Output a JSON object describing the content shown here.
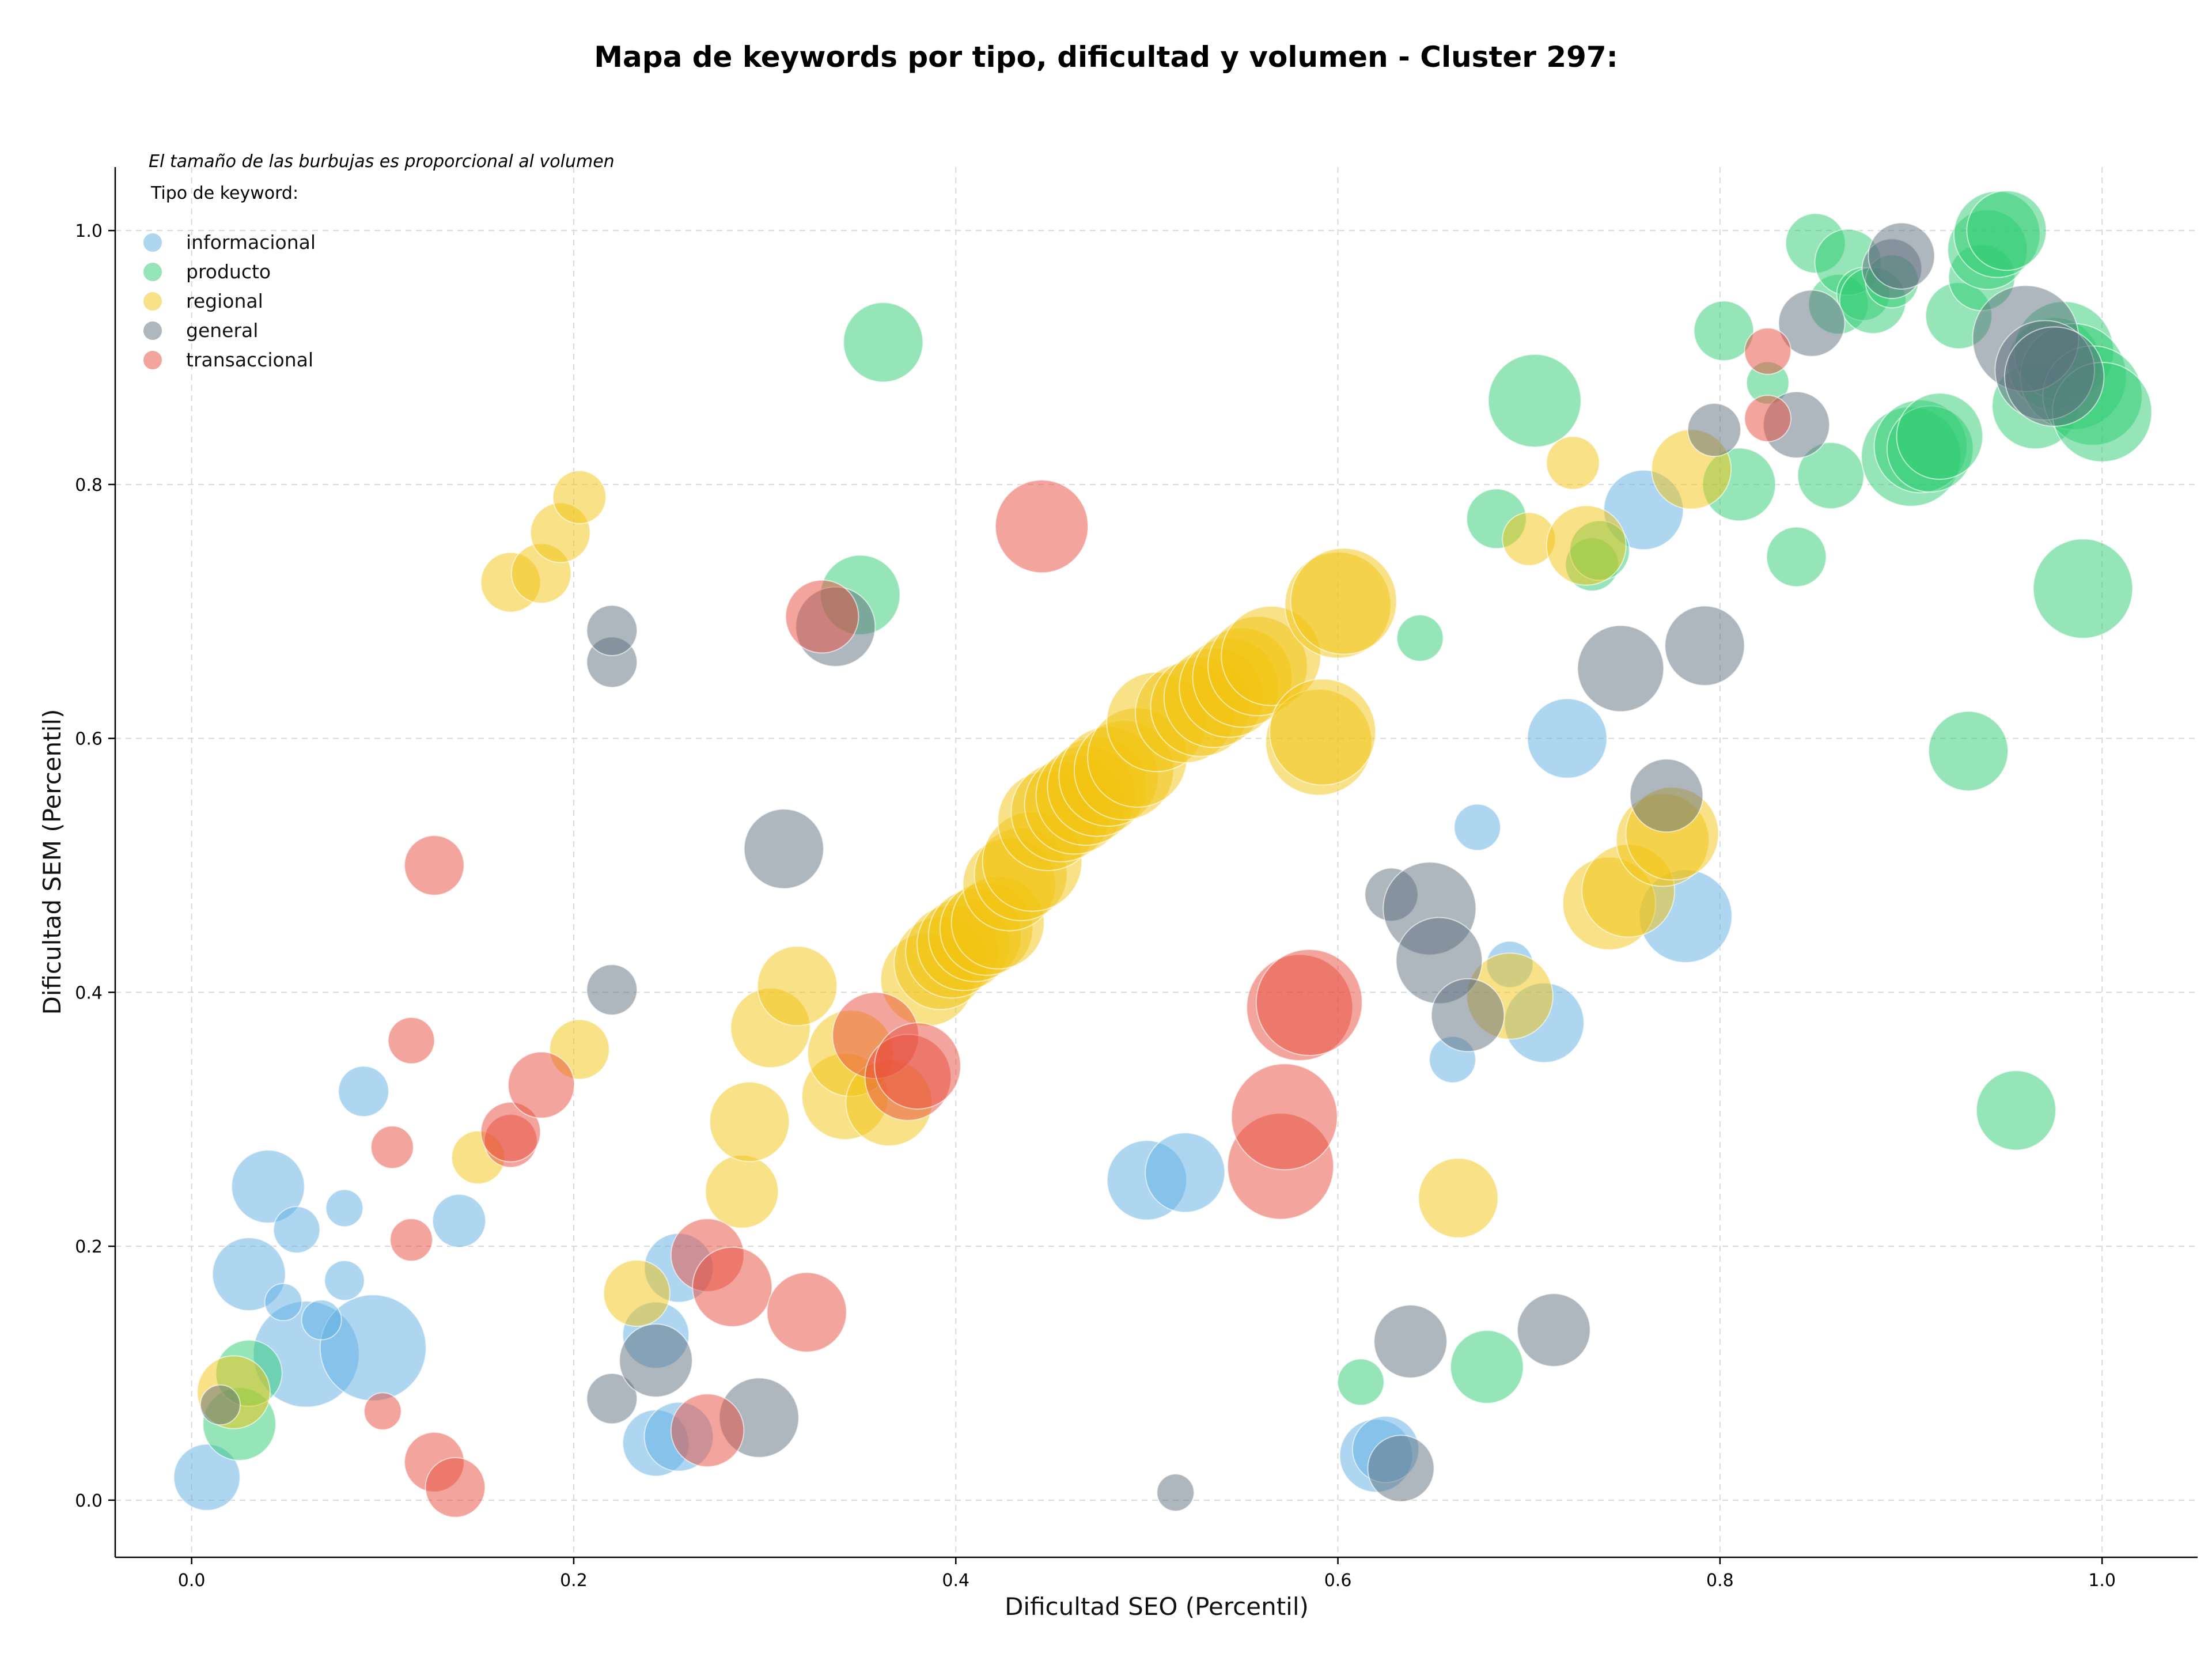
{
  "chart_data": {
    "type": "scatter",
    "title": "Mapa de keywords por tipo, dificultad y volumen - Cluster 297:",
    "xlabel": "Dificultad SEO (Percentil)",
    "ylabel": "Dificultad SEM (Percentil)",
    "xlim": [
      -0.04,
      1.05
    ],
    "ylim": [
      -0.045,
      1.05
    ],
    "xticks": [
      "0.0",
      "0.2",
      "0.4",
      "0.6",
      "0.8",
      "1.0"
    ],
    "yticks": [
      "0.0",
      "0.2",
      "0.4",
      "0.6",
      "0.8",
      "1.0"
    ],
    "grid": true,
    "note": "El tamaño de las burbujas es proporcional al volumen",
    "legend_title": "Tipo de keyword:",
    "legend_position": "top-left",
    "series": [
      {
        "name": "informacional",
        "color": "#5DADE2",
        "points": [
          [
            0.008,
            0.018,
            5
          ],
          [
            0.03,
            0.178,
            5.5
          ],
          [
            0.04,
            0.247,
            5.5
          ],
          [
            0.055,
            0.213,
            3.5
          ],
          [
            0.06,
            0.115,
            8
          ],
          [
            0.095,
            0.12,
            8
          ],
          [
            0.09,
            0.322,
            3.8
          ],
          [
            0.08,
            0.173,
            3
          ],
          [
            0.08,
            0.23,
            2.8
          ],
          [
            0.068,
            0.142,
            3
          ],
          [
            0.048,
            0.156,
            2.8
          ],
          [
            0.14,
            0.22,
            4
          ],
          [
            0.243,
            0.13,
            5
          ],
          [
            0.243,
            0.045,
            5
          ],
          [
            0.255,
            0.05,
            5.2
          ],
          [
            0.255,
            0.183,
            5.2
          ],
          [
            0.5,
            0.252,
            6
          ],
          [
            0.52,
            0.258,
            6
          ],
          [
            0.62,
            0.035,
            5.5
          ],
          [
            0.625,
            0.04,
            5
          ],
          [
            0.66,
            0.347,
            3.5
          ],
          [
            0.673,
            0.53,
            3.5
          ],
          [
            0.69,
            0.422,
            3.5
          ],
          [
            0.708,
            0.376,
            6
          ],
          [
            0.72,
            0.6,
            6
          ],
          [
            0.76,
            0.78,
            6
          ],
          [
            0.782,
            0.46,
            7
          ]
        ]
      },
      {
        "name": "producto",
        "color": "#2ECC71",
        "points": [
          [
            0.025,
            0.06,
            5.5
          ],
          [
            0.03,
            0.1,
            5
          ],
          [
            0.362,
            0.912,
            6
          ],
          [
            0.35,
            0.713,
            6
          ],
          [
            0.612,
            0.093,
            3.5
          ],
          [
            0.643,
            0.679,
            3.5
          ],
          [
            0.678,
            0.105,
            5.5
          ],
          [
            0.683,
            0.773,
            4.5
          ],
          [
            0.703,
            0.866,
            7
          ],
          [
            0.733,
            0.737,
            4
          ],
          [
            0.737,
            0.748,
            4.5
          ],
          [
            0.802,
            0.921,
            4.5
          ],
          [
            0.81,
            0.8,
            5.5
          ],
          [
            0.825,
            0.88,
            3.2
          ],
          [
            0.84,
            0.743,
            4.5
          ],
          [
            0.85,
            0.99,
            4.5
          ],
          [
            0.858,
            0.807,
            5
          ],
          [
            0.862,
            0.942,
            4.5
          ],
          [
            0.867,
            0.975,
            5
          ],
          [
            0.875,
            0.95,
            4
          ],
          [
            0.88,
            0.945,
            5
          ],
          [
            0.89,
            0.96,
            4
          ],
          [
            0.9,
            0.822,
            7.5
          ],
          [
            0.905,
            0.83,
            7
          ],
          [
            0.91,
            0.828,
            6.5
          ],
          [
            0.915,
            0.838,
            6.5
          ],
          [
            0.925,
            0.933,
            5
          ],
          [
            0.93,
            0.59,
            6
          ],
          [
            0.937,
            0.963,
            5
          ],
          [
            0.94,
            0.985,
            6
          ],
          [
            0.945,
            0.997,
            6.5
          ],
          [
            0.95,
            1.0,
            6
          ],
          [
            0.955,
            0.307,
            6
          ],
          [
            0.965,
            0.862,
            6.5
          ],
          [
            0.975,
            0.895,
            7
          ],
          [
            0.98,
            0.905,
            7.5
          ],
          [
            0.985,
            0.885,
            8
          ],
          [
            0.99,
            0.718,
            7.5
          ],
          [
            0.995,
            0.87,
            7.5
          ],
          [
            1.0,
            0.857,
            7.5
          ]
        ]
      },
      {
        "name": "regional",
        "color": "#F1C40F",
        "points": [
          [
            0.022,
            0.085,
            5.5
          ],
          [
            0.15,
            0.27,
            4
          ],
          [
            0.167,
            0.723,
            4.5
          ],
          [
            0.183,
            0.73,
            4.5
          ],
          [
            0.193,
            0.762,
            4.5
          ],
          [
            0.203,
            0.79,
            4
          ],
          [
            0.203,
            0.355,
            4.5
          ],
          [
            0.233,
            0.163,
            5
          ],
          [
            0.288,
            0.243,
            5.5
          ],
          [
            0.292,
            0.298,
            6
          ],
          [
            0.303,
            0.372,
            6
          ],
          [
            0.317,
            0.405,
            6
          ],
          [
            0.342,
            0.318,
            6.5
          ],
          [
            0.345,
            0.352,
            6.5
          ],
          [
            0.365,
            0.313,
            6.5
          ],
          [
            0.385,
            0.41,
            7
          ],
          [
            0.392,
            0.423,
            7
          ],
          [
            0.398,
            0.432,
            7
          ],
          [
            0.404,
            0.438,
            7
          ],
          [
            0.41,
            0.445,
            7
          ],
          [
            0.416,
            0.45,
            7
          ],
          [
            0.422,
            0.455,
            7
          ],
          [
            0.428,
            0.485,
            7
          ],
          [
            0.434,
            0.493,
            7
          ],
          [
            0.44,
            0.503,
            7.5
          ],
          [
            0.448,
            0.535,
            7.5
          ],
          [
            0.455,
            0.542,
            7.5
          ],
          [
            0.462,
            0.548,
            7.5
          ],
          [
            0.468,
            0.555,
            7.5
          ],
          [
            0.474,
            0.562,
            7.5
          ],
          [
            0.48,
            0.57,
            7.5
          ],
          [
            0.488,
            0.575,
            7.5
          ],
          [
            0.495,
            0.585,
            7.5
          ],
          [
            0.505,
            0.613,
            7.5
          ],
          [
            0.52,
            0.62,
            7.5
          ],
          [
            0.528,
            0.625,
            7.5
          ],
          [
            0.535,
            0.632,
            7.5
          ],
          [
            0.543,
            0.64,
            7.5
          ],
          [
            0.55,
            0.648,
            7.5
          ],
          [
            0.558,
            0.657,
            7.5
          ],
          [
            0.565,
            0.665,
            7.5
          ],
          [
            0.59,
            0.597,
            8
          ],
          [
            0.592,
            0.605,
            8
          ],
          [
            0.6,
            0.705,
            8
          ],
          [
            0.603,
            0.708,
            8
          ],
          [
            0.663,
            0.238,
            6
          ],
          [
            0.69,
            0.397,
            6.5
          ],
          [
            0.7,
            0.757,
            4
          ],
          [
            0.723,
            0.817,
            4
          ],
          [
            0.73,
            0.752,
            6
          ],
          [
            0.742,
            0.47,
            7
          ],
          [
            0.752,
            0.48,
            7
          ],
          [
            0.77,
            0.52,
            7
          ],
          [
            0.775,
            0.525,
            7
          ],
          [
            0.785,
            0.812,
            6
          ]
        ]
      },
      {
        "name": "general",
        "color": "#5D6D7E",
        "points": [
          [
            0.015,
            0.075,
            3
          ],
          [
            0.22,
            0.08,
            3.8
          ],
          [
            0.22,
            0.402,
            3.8
          ],
          [
            0.22,
            0.66,
            3.8
          ],
          [
            0.22,
            0.685,
            3.8
          ],
          [
            0.243,
            0.11,
            5.5
          ],
          [
            0.297,
            0.065,
            6
          ],
          [
            0.31,
            0.513,
            6
          ],
          [
            0.337,
            0.688,
            6
          ],
          [
            0.515,
            0.006,
            2.8
          ],
          [
            0.628,
            0.477,
            4
          ],
          [
            0.633,
            0.025,
            5
          ],
          [
            0.638,
            0.125,
            5.5
          ],
          [
            0.648,
            0.466,
            7
          ],
          [
            0.653,
            0.425,
            6.5
          ],
          [
            0.668,
            0.382,
            5.5
          ],
          [
            0.713,
            0.134,
            5.5
          ],
          [
            0.748,
            0.655,
            6.5
          ],
          [
            0.772,
            0.555,
            5.5
          ],
          [
            0.792,
            0.673,
            6
          ],
          [
            0.797,
            0.843,
            4
          ],
          [
            0.84,
            0.847,
            5
          ],
          [
            0.848,
            0.927,
            5
          ],
          [
            0.89,
            0.97,
            4.5
          ],
          [
            0.895,
            0.98,
            5
          ],
          [
            0.96,
            0.915,
            8
          ],
          [
            0.97,
            0.89,
            7.5
          ],
          [
            0.975,
            0.885,
            7.5
          ]
        ]
      },
      {
        "name": "transaccional",
        "color": "#E74C3C",
        "points": [
          [
            0.1,
            0.07,
            2.8
          ],
          [
            0.105,
            0.278,
            3.2
          ],
          [
            0.115,
            0.205,
            3.2
          ],
          [
            0.115,
            0.362,
            3.5
          ],
          [
            0.127,
            0.03,
            4.5
          ],
          [
            0.127,
            0.5,
            4.5
          ],
          [
            0.138,
            0.01,
            4.5
          ],
          [
            0.167,
            0.283,
            4
          ],
          [
            0.167,
            0.29,
            4.5
          ],
          [
            0.183,
            0.327,
            5
          ],
          [
            0.27,
            0.055,
            5.5
          ],
          [
            0.27,
            0.193,
            5.5
          ],
          [
            0.283,
            0.168,
            6
          ],
          [
            0.322,
            0.148,
            6
          ],
          [
            0.33,
            0.696,
            5.5
          ],
          [
            0.358,
            0.366,
            6.5
          ],
          [
            0.375,
            0.333,
            6.5
          ],
          [
            0.38,
            0.342,
            6.5
          ],
          [
            0.445,
            0.767,
            7
          ],
          [
            0.57,
            0.263,
            8
          ],
          [
            0.572,
            0.302,
            8
          ],
          [
            0.58,
            0.388,
            8
          ],
          [
            0.585,
            0.392,
            8
          ],
          [
            0.825,
            0.905,
            3.5
          ],
          [
            0.825,
            0.852,
            3.5
          ]
        ]
      }
    ]
  }
}
